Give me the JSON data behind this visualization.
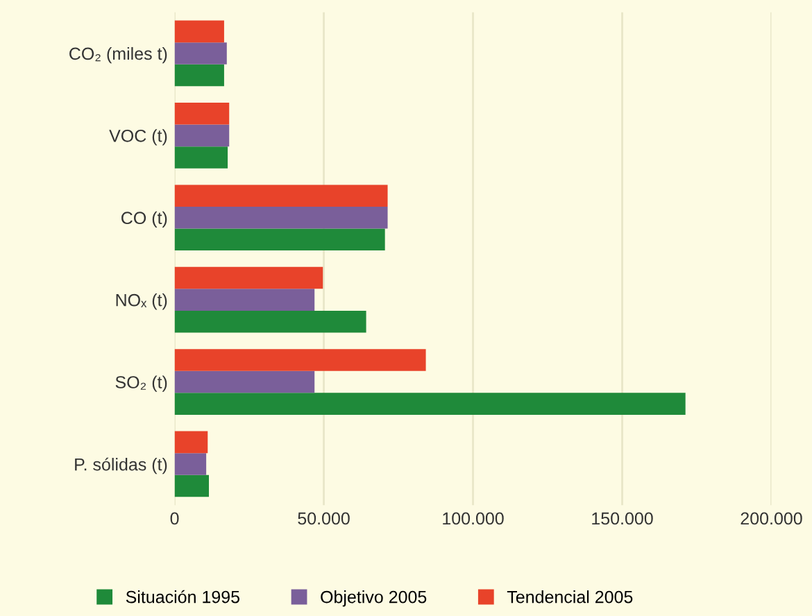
{
  "chart_data": {
    "type": "bar",
    "orientation": "horizontal",
    "categories": [
      "CO₂ (miles t)",
      "VOC (t)",
      "CO (t)",
      "NOₓ (t)",
      "SO₂ (t)",
      "P. sólidas (t)"
    ],
    "series": [
      {
        "name": "Situación 1995",
        "color": "#1f8a3a",
        "values": [
          16600,
          17800,
          70500,
          64200,
          171200,
          11500
        ]
      },
      {
        "name": "Objetivo 2005",
        "color": "#7a5f9a",
        "values": [
          17500,
          18300,
          71400,
          46900,
          46900,
          10600
        ]
      },
      {
        "name": "Tendencial 2005",
        "color": "#e8432a",
        "values": [
          16600,
          18300,
          71400,
          49700,
          84200,
          11100
        ]
      }
    ],
    "xlim": [
      0,
      200000
    ],
    "xticks": [
      0,
      {
        "value": 50000,
        "label": "50.000"
      },
      {
        "value": 100000,
        "label": "100.000"
      },
      {
        "value": 150000,
        "label": "150.000"
      },
      {
        "value": 200000,
        "label": "200.000"
      }
    ],
    "grid": "x",
    "legend": "bottom"
  }
}
